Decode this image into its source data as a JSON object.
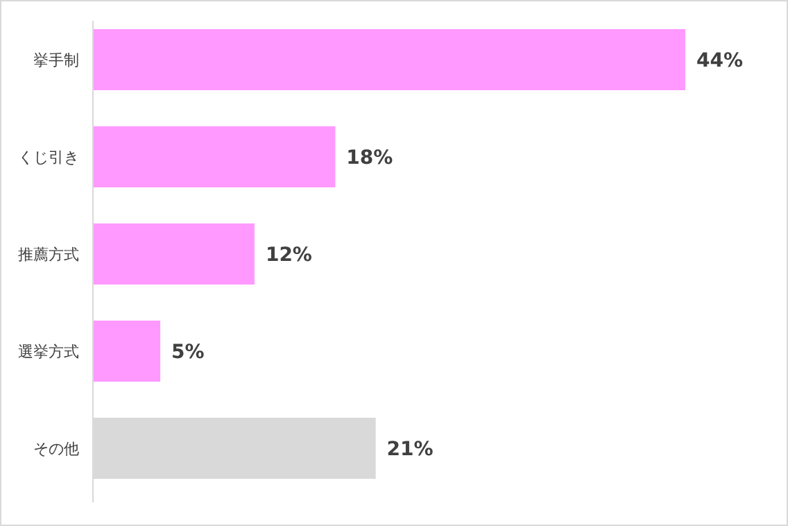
{
  "chart_data": {
    "type": "bar",
    "orientation": "horizontal",
    "categories": [
      "挙手制",
      "くじ引き",
      "推薦方式",
      "選挙方式",
      "その他"
    ],
    "values": [
      44,
      18,
      12,
      5,
      21
    ],
    "colors": [
      "#ff99ff",
      "#ff99ff",
      "#ff99ff",
      "#ff99ff",
      "#d9d9d9"
    ],
    "value_labels": [
      "44%",
      "18%",
      "12%",
      "5%",
      "21%"
    ]
  }
}
